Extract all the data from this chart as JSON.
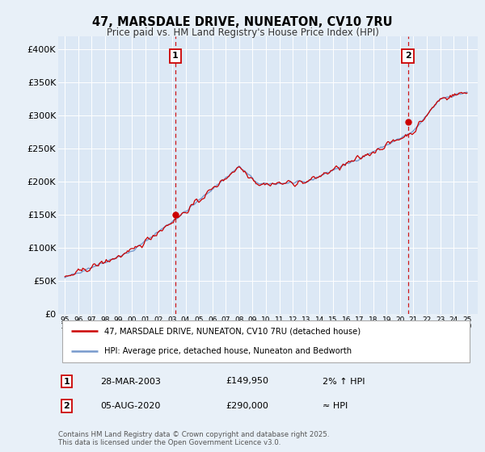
{
  "title": "47, MARSDALE DRIVE, NUNEATON, CV10 7RU",
  "subtitle": "Price paid vs. HM Land Registry's House Price Index (HPI)",
  "background_color": "#e8f0f8",
  "plot_bg_color": "#dce8f5",
  "grid_color": "#ffffff",
  "hpi_color": "#7799cc",
  "price_color": "#cc0000",
  "marker1_x": 2003.24,
  "marker2_x": 2020.59,
  "marker1_y": 149950,
  "marker2_y": 290000,
  "sale1_date": "28-MAR-2003",
  "sale1_price": "£149,950",
  "sale1_note": "2% ↑ HPI",
  "sale2_date": "05-AUG-2020",
  "sale2_price": "£290,000",
  "sale2_note": "≈ HPI",
  "legend1": "47, MARSDALE DRIVE, NUNEATON, CV10 7RU (detached house)",
  "legend2": "HPI: Average price, detached house, Nuneaton and Bedworth",
  "copyright": "Contains HM Land Registry data © Crown copyright and database right 2025.\nThis data is licensed under the Open Government Licence v3.0.",
  "ylim": [
    0,
    420000
  ],
  "xlim": [
    1994.5,
    2025.8
  ],
  "yticks": [
    0,
    50000,
    100000,
    150000,
    200000,
    250000,
    300000,
    350000,
    400000
  ],
  "ytick_labels": [
    "£0",
    "£50K",
    "£100K",
    "£150K",
    "£200K",
    "£250K",
    "£300K",
    "£350K",
    "£400K"
  ],
  "xticks": [
    1995,
    1996,
    1997,
    1998,
    1999,
    2000,
    2001,
    2002,
    2003,
    2004,
    2005,
    2006,
    2007,
    2008,
    2009,
    2010,
    2011,
    2012,
    2013,
    2014,
    2015,
    2016,
    2017,
    2018,
    2019,
    2020,
    2021,
    2022,
    2023,
    2024,
    2025
  ]
}
